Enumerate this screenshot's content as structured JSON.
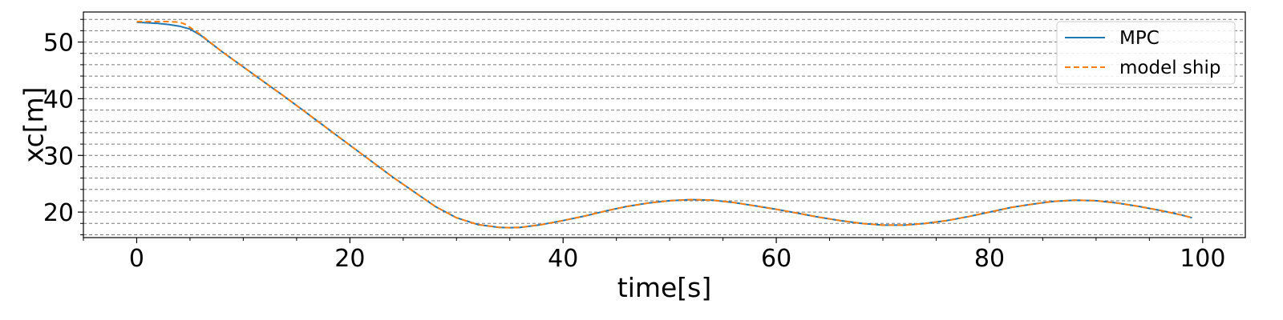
{
  "chart_data": {
    "type": "line",
    "xlabel": "time[s]",
    "ylabel": "xc[m]",
    "xlim": [
      -5,
      104
    ],
    "ylim": [
      15.5,
      55.3
    ],
    "x_ticks": [
      0,
      20,
      40,
      60,
      80,
      100
    ],
    "y_ticks": [
      20,
      30,
      40,
      50
    ],
    "x_minor_step": 5,
    "y_minor_step": 2,
    "grid": "horizontal dashed (major and minor)",
    "legend_position": "upper right",
    "series": [
      {
        "name": "MPC",
        "color": "#1f77b4",
        "style": "solid",
        "x": [
          0,
          2,
          3,
          4,
          5,
          6,
          8,
          10,
          12,
          14,
          16,
          18,
          20,
          22,
          24,
          26,
          28,
          30,
          32,
          34,
          35,
          36,
          38,
          40,
          42,
          44,
          46,
          48,
          50,
          52,
          54,
          56,
          58,
          60,
          62,
          64,
          66,
          68,
          70,
          72,
          74,
          76,
          78,
          80,
          82,
          84,
          86,
          88,
          90,
          92,
          94,
          96,
          98,
          99
        ],
        "y": [
          53.5,
          53.3,
          53.1,
          52.8,
          52.3,
          51.2,
          48.3,
          45.6,
          42.9,
          40.2,
          37.4,
          34.6,
          31.8,
          29.0,
          26.2,
          23.6,
          21.0,
          19.0,
          17.8,
          17.3,
          17.25,
          17.3,
          17.8,
          18.5,
          19.3,
          20.2,
          21.0,
          21.6,
          22.0,
          22.2,
          22.1,
          21.7,
          21.1,
          20.5,
          19.8,
          19.1,
          18.5,
          18.0,
          17.7,
          17.7,
          18.0,
          18.5,
          19.2,
          20.0,
          20.8,
          21.4,
          21.9,
          22.1,
          22.0,
          21.6,
          21.0,
          20.3,
          19.5,
          19.0
        ]
      },
      {
        "name": "model ship",
        "color": "#ff7f0e",
        "style": "dashed",
        "x": [
          0,
          2,
          3,
          4,
          4.5,
          5,
          6,
          8,
          10,
          12,
          14,
          16,
          18,
          20,
          22,
          24,
          26,
          28,
          30,
          32,
          34,
          35,
          36,
          38,
          40,
          42,
          44,
          46,
          48,
          50,
          52,
          54,
          56,
          58,
          60,
          62,
          64,
          66,
          68,
          70,
          72,
          74,
          76,
          78,
          80,
          82,
          84,
          86,
          88,
          90,
          92,
          94,
          96,
          98,
          99
        ],
        "y": [
          53.6,
          53.6,
          53.6,
          53.5,
          53.2,
          52.6,
          51.3,
          48.3,
          45.6,
          42.9,
          40.2,
          37.4,
          34.6,
          31.8,
          29.0,
          26.2,
          23.6,
          21.0,
          19.0,
          17.8,
          17.3,
          17.25,
          17.3,
          17.8,
          18.5,
          19.3,
          20.2,
          21.0,
          21.6,
          22.0,
          22.2,
          22.1,
          21.7,
          21.1,
          20.5,
          19.8,
          19.1,
          18.5,
          18.0,
          17.7,
          17.7,
          18.0,
          18.5,
          19.2,
          20.0,
          20.8,
          21.4,
          21.9,
          22.1,
          22.0,
          21.6,
          21.0,
          20.3,
          19.5,
          19.0
        ]
      }
    ]
  }
}
